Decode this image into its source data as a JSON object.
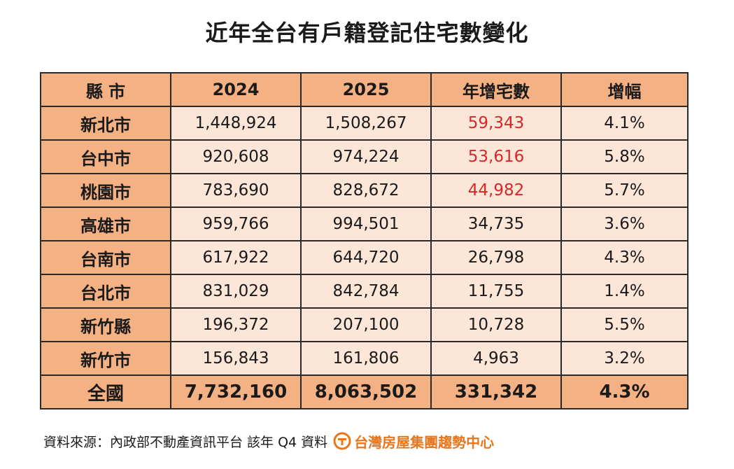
{
  "chart_data": {
    "type": "table",
    "title": "近年全台有戶籍登記住宅數變化",
    "columns": [
      "縣 市",
      "2024",
      "2025",
      "年增宅數",
      "增幅"
    ],
    "rows": [
      {
        "county": "新北市",
        "y2024": "1,448,924",
        "y2025": "1,508,267",
        "increase": "59,343",
        "growth": "4.1%",
        "highlight": true
      },
      {
        "county": "台中市",
        "y2024": "920,608",
        "y2025": "974,224",
        "increase": "53,616",
        "growth": "5.8%",
        "highlight": true
      },
      {
        "county": "桃園市",
        "y2024": "783,690",
        "y2025": "828,672",
        "increase": "44,982",
        "growth": "5.7%",
        "highlight": true
      },
      {
        "county": "高雄市",
        "y2024": "959,766",
        "y2025": "994,501",
        "increase": "34,735",
        "growth": "3.6%",
        "highlight": false
      },
      {
        "county": "台南市",
        "y2024": "617,922",
        "y2025": "644,720",
        "increase": "26,798",
        "growth": "4.3%",
        "highlight": false
      },
      {
        "county": "台北市",
        "y2024": "831,029",
        "y2025": "842,784",
        "increase": "11,755",
        "growth": "1.4%",
        "highlight": false
      },
      {
        "county": "新竹縣",
        "y2024": "196,372",
        "y2025": "207,100",
        "increase": "10,728",
        "growth": "5.5%",
        "highlight": false
      },
      {
        "county": "新竹市",
        "y2024": "156,843",
        "y2025": "161,806",
        "increase": "4,963",
        "growth": "3.2%",
        "highlight": false
      }
    ],
    "total": {
      "county": "全國",
      "y2024": "7,732,160",
      "y2025": "8,063,502",
      "increase": "331,342",
      "growth": "4.3%"
    }
  },
  "footer": {
    "source": "資料來源：內政部不動產資訊平台  該年 Q4 資料",
    "brand": "台灣房屋集團趨勢中心"
  },
  "colors": {
    "header_bg": "#f4b183",
    "cell_bg": "#fce6d8",
    "highlight_text": "#d62828",
    "brand": "#e8761c"
  },
  "icons": {
    "brand_logo": "taiwan-realty-logo-icon"
  }
}
